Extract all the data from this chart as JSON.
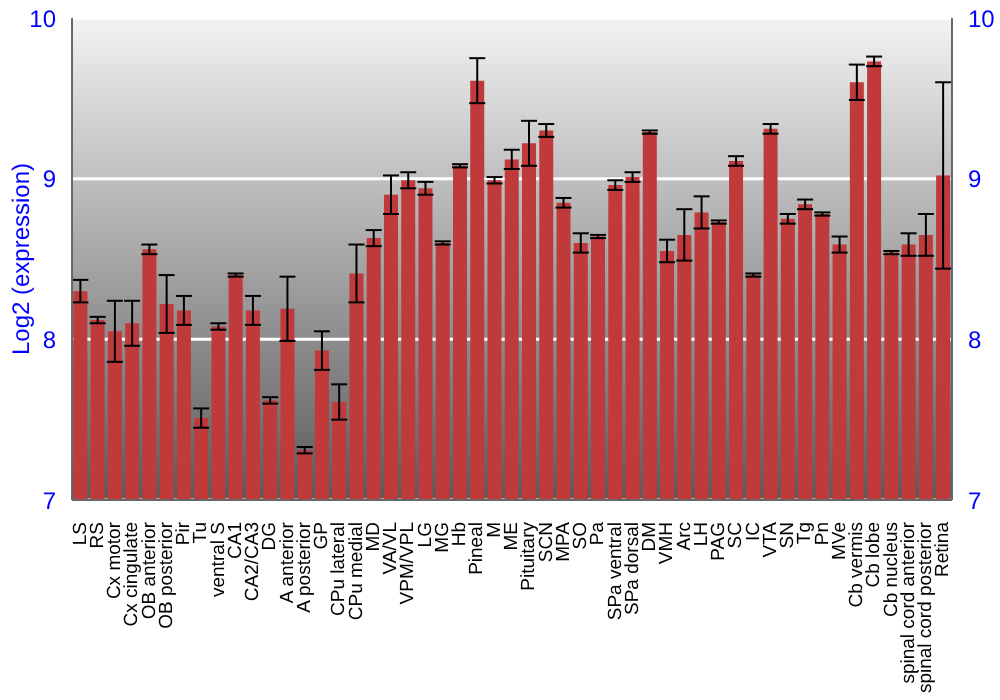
{
  "chart_data": {
    "type": "bar",
    "ylabel": "Log2 (expression)",
    "categories": [
      "LS",
      "RS",
      "Cx motor",
      "Cx cingulate",
      "OB anterior",
      "OB posterior",
      "Pir",
      "Tu",
      "ventral S",
      "CA1",
      "CA2/CA3",
      "DG",
      "A anterior",
      "A posterior",
      "GP",
      "CPu lateral",
      "CPu medial",
      "MD",
      "VA/VL",
      "VPM/VPL",
      "LG",
      "MG",
      "Hb",
      "Pineal",
      "M",
      "ME",
      "Pituitary",
      "SCN",
      "MPA",
      "SO",
      "Pa",
      "SPa ventral",
      "SPa dorsal",
      "DM",
      "VMH",
      "Arc",
      "LH",
      "PAG",
      "SC",
      "IC",
      "VTA",
      "SN",
      "Tg",
      "Pn",
      "MVe",
      "Cb vermis",
      "Cb lobe",
      "Cb nucleus",
      "spinal cord anterior",
      "spinal cord posterior",
      "Retina"
    ],
    "values": [
      8.3,
      8.12,
      8.05,
      8.1,
      8.56,
      8.22,
      8.18,
      7.51,
      8.08,
      8.4,
      8.18,
      7.62,
      8.19,
      7.31,
      7.93,
      7.61,
      8.41,
      8.63,
      8.9,
      8.99,
      8.94,
      8.6,
      9.08,
      9.61,
      8.99,
      9.12,
      9.22,
      9.3,
      8.85,
      8.6,
      8.64,
      8.96,
      9.01,
      9.29,
      8.55,
      8.65,
      8.79,
      8.73,
      9.11,
      8.4,
      9.31,
      8.75,
      8.84,
      8.78,
      8.59,
      9.6,
      9.73,
      8.54,
      8.59,
      8.65,
      9.02
    ],
    "errors": [
      0.07,
      0.02,
      0.19,
      0.14,
      0.03,
      0.18,
      0.09,
      0.06,
      0.02,
      0.01,
      0.09,
      0.02,
      0.2,
      0.02,
      0.12,
      0.11,
      0.18,
      0.05,
      0.12,
      0.05,
      0.04,
      0.01,
      0.01,
      0.14,
      0.02,
      0.06,
      0.14,
      0.04,
      0.03,
      0.06,
      0.01,
      0.03,
      0.03,
      0.01,
      0.07,
      0.16,
      0.1,
      0.01,
      0.03,
      0.01,
      0.03,
      0.03,
      0.03,
      0.01,
      0.05,
      0.11,
      0.03,
      0.01,
      0.07,
      0.13,
      0.58
    ],
    "color": "#c0393b",
    "ylim": [
      7,
      10
    ],
    "yticks": [
      7,
      8,
      9,
      10
    ],
    "y2lim": [
      7,
      10
    ],
    "y2ticks": [
      7,
      8,
      9,
      10
    ],
    "grid": "y"
  }
}
